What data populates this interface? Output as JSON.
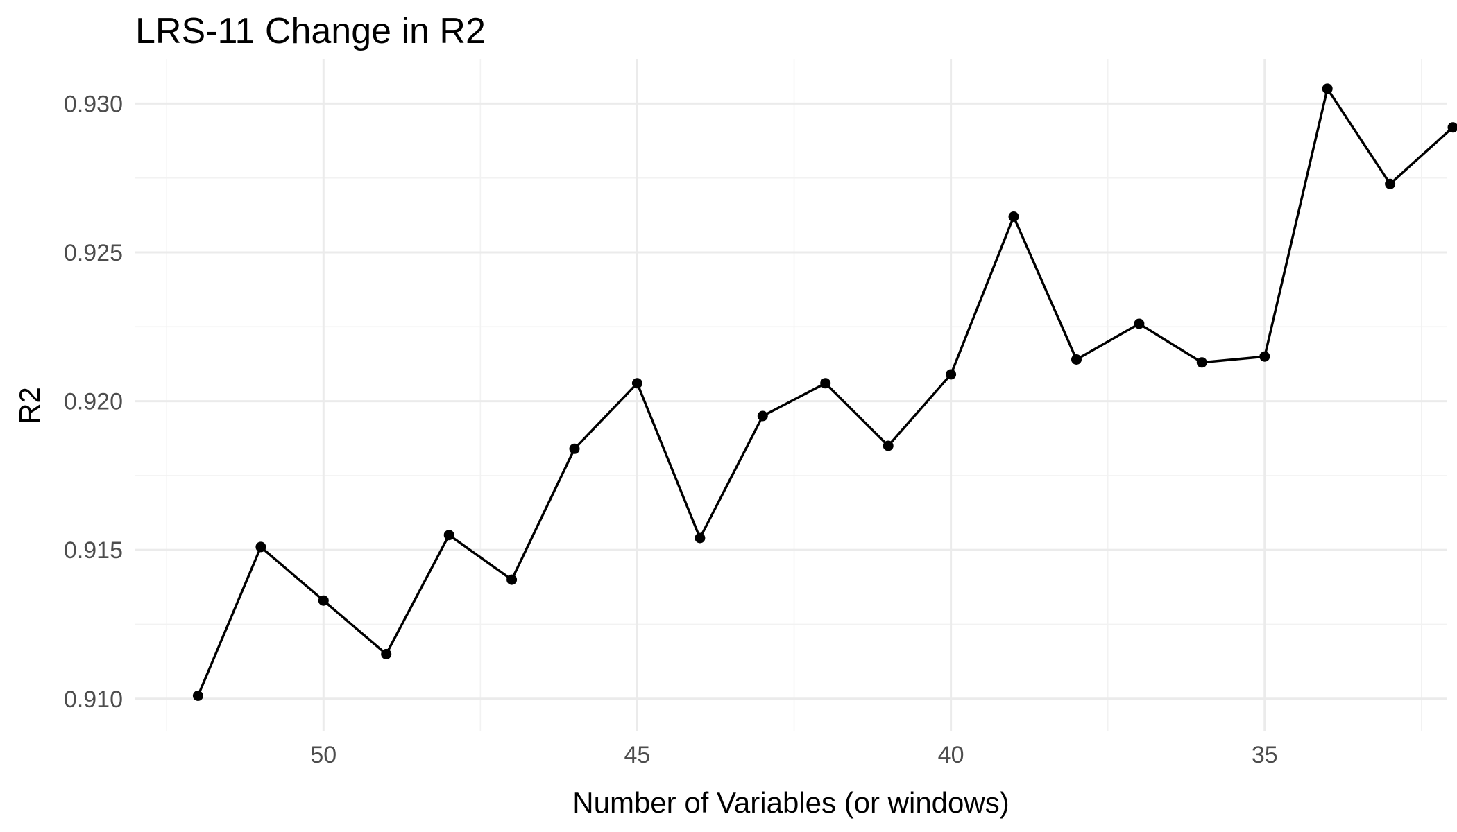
{
  "chart_data": {
    "type": "line",
    "title": "LRS-11 Change in R2",
    "xlabel": "Number of Variables (or windows)",
    "ylabel": "R2",
    "x_axis_reversed": true,
    "xlim": [
      32.1,
      53.0
    ],
    "ylim": [
      0.9089,
      0.9315
    ],
    "x_major_ticks": [
      50,
      45,
      40,
      35
    ],
    "x_tick_labels": [
      "50",
      "45",
      "40",
      "35"
    ],
    "x_minor_ticks": [
      52.5,
      47.5,
      42.5,
      37.5,
      32.5
    ],
    "y_major_ticks": [
      0.91,
      0.915,
      0.92,
      0.925,
      0.93
    ],
    "y_tick_labels": [
      "0.910",
      "0.915",
      "0.920",
      "0.925",
      "0.930"
    ],
    "y_minor_ticks": [
      0.9125,
      0.9175,
      0.9225,
      0.9275
    ],
    "grid": true,
    "legend": "none",
    "series": [
      {
        "color": "#000000",
        "x": [
          52,
          51,
          50,
          49,
          48,
          47,
          46,
          45,
          44,
          43,
          42,
          41,
          40,
          39,
          38,
          37,
          36,
          35,
          34,
          33,
          32
        ],
        "y": [
          0.9101,
          0.9151,
          0.9133,
          0.9115,
          0.9155,
          0.914,
          0.9184,
          0.9206,
          0.9154,
          0.9195,
          0.9206,
          0.9185,
          0.9209,
          0.9262,
          0.9214,
          0.9226,
          0.9213,
          0.9215,
          0.9305,
          0.9273,
          0.9292
        ]
      }
    ]
  }
}
